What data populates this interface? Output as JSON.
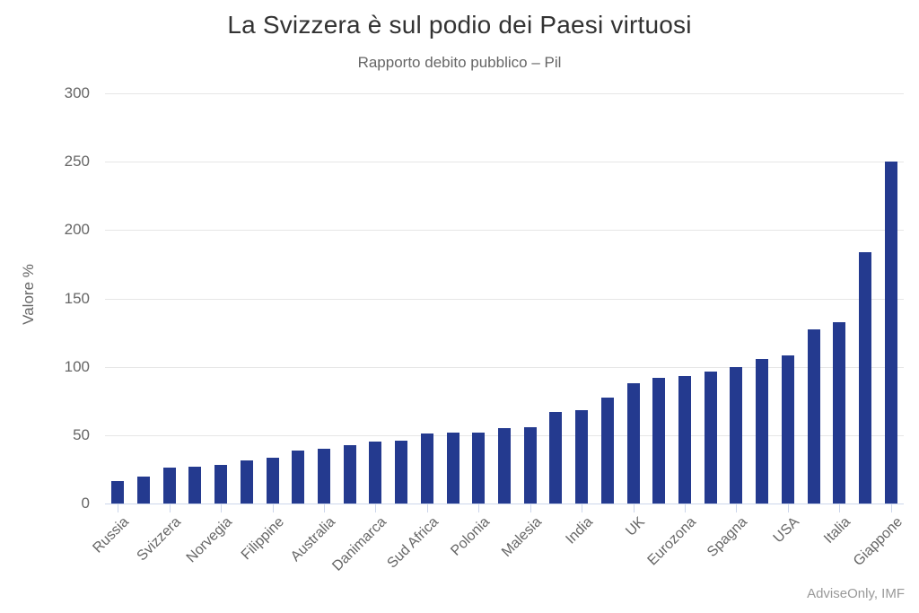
{
  "header": {
    "title": "La Svizzera è sul podio dei Paesi virtuosi",
    "subtitle": "Rapporto debito pubblico – Pil"
  },
  "credits_label": "AdviseOnly, IMF",
  "chart_data": {
    "type": "bar",
    "title": "La Svizzera è sul podio dei Paesi virtuosi",
    "subtitle": "Rapporto debito pubblico – Pil",
    "xlabel": "",
    "ylabel": "Valore %",
    "ylim": [
      0,
      300
    ],
    "yticks": [
      0,
      50,
      100,
      150,
      200,
      250,
      300
    ],
    "grid": true,
    "legend": "none",
    "categories": [
      "Russia",
      "",
      "Svizzera",
      "",
      "Norvegia",
      "",
      "Filippine",
      "",
      "Australia",
      "",
      "Danimarca",
      "",
      "Sud Africa",
      "",
      "Polonia",
      "",
      "Malesia",
      "",
      "India",
      "",
      "UK",
      "",
      "Eurozona",
      "",
      "Spagna",
      "",
      "USA",
      "",
      "Italia",
      "",
      "Giappone"
    ],
    "values": [
      16.5,
      19.8,
      26.5,
      26.7,
      27.9,
      31.5,
      33.5,
      38.8,
      39.9,
      42.5,
      45.5,
      45.8,
      51.5,
      51.7,
      51.9,
      55.4,
      55.7,
      67,
      68.5,
      77.5,
      88,
      91.8,
      93,
      96.5,
      100,
      105.5,
      108,
      127.5,
      132.5,
      183.5,
      250
    ],
    "annotations": [
      "AdviseOnly, IMF"
    ],
    "colors": {
      "bar": "#243a8f",
      "gridline": "#e6e6e6",
      "axis_line": "#ccd6eb",
      "title_text": "#333333",
      "label_text": "#666666",
      "credits_text": "#999999",
      "background": "#ffffff"
    }
  }
}
